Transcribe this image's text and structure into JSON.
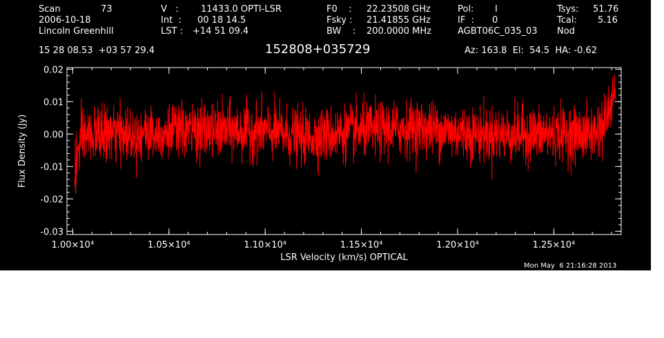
{
  "header": {
    "scan_label": "Scan",
    "scan_value": "73",
    "date": "2006-10-18",
    "observer": "Lincoln Greenhill",
    "v_label": "V   :",
    "v_value": "11433.0 OPTI-LSR",
    "int_label": "Int  :",
    "int_value": "00 18 14.5",
    "lst_label": "LST :",
    "lst_value": "+14 51 09.4",
    "f0_label": "F0    :",
    "f0_value": "22.23508 GHz",
    "fsky_label": "Fsky :",
    "fsky_value": "21.41855 GHz",
    "bw_label": "BW    :",
    "bw_value": "200.0000 MHz",
    "pol_label": "Pol:",
    "pol_value": "I",
    "if_label": "IF  :",
    "if_value": "0",
    "project": "AGBT06C_035_03",
    "tsys_label": "Tsys:",
    "tsys_value": "51.76",
    "tcal_label": "Tcal:",
    "tcal_value": "5.16",
    "mode": "Nod"
  },
  "coords": "15 28 08.53  +03 57 29.4",
  "source_name": "152808+035729",
  "azel": "Az: 163.8  El:  54.5  HA: -0.62",
  "timestamp": "Mon May  6 21:16:28 2013",
  "colors": {
    "background": "#000000",
    "axes": "#ffffff",
    "trace": "#ff0000"
  },
  "chart_data": {
    "type": "line",
    "xlabel": "LSR Velocity (km/s) OPTICAL",
    "ylabel": "Flux Density (Jy)",
    "xlim": [
      9970,
      12850
    ],
    "ylim": [
      -0.031,
      0.0205
    ],
    "xticks": [
      {
        "value": 10000,
        "label": "1.00×10⁴"
      },
      {
        "value": 10500,
        "label": "1.05×10⁴"
      },
      {
        "value": 11000,
        "label": "1.10×10⁴"
      },
      {
        "value": 11500,
        "label": "1.15×10⁴"
      },
      {
        "value": 12000,
        "label": "1.20×10⁴"
      },
      {
        "value": 12500,
        "label": "1.25×10⁴"
      }
    ],
    "yticks": [
      {
        "value": 0.02,
        "label": "0.02"
      },
      {
        "value": 0.01,
        "label": "0.01"
      },
      {
        "value": 0.0,
        "label": "0.00"
      },
      {
        "value": -0.01,
        "label": "-0.01"
      },
      {
        "value": -0.02,
        "label": "-0.02"
      },
      {
        "value": -0.03,
        "label": "-0.03"
      }
    ],
    "x_minor_step": 100,
    "y_minor_step": 0.002,
    "grid": false,
    "series": [
      {
        "color": "#ff0000",
        "x_range": [
          10010,
          12820
        ],
        "approx_envelope": {
          "x": [
            10010,
            10030,
            10060,
            10100,
            10300,
            10600,
            11000,
            11200,
            11500,
            11800,
            12100,
            12400,
            12700,
            12760,
            12790,
            12820
          ],
          "mean": [
            -0.012,
            -0.005,
            -0.001,
            0.0,
            0.0,
            0.001,
            0.001,
            -0.001,
            0.001,
            0.002,
            0.0,
            0.0,
            0.0,
            0.003,
            0.008,
            0.013
          ],
          "noise_rms": [
            0.006,
            0.005,
            0.0045,
            0.0042,
            0.0042,
            0.0042,
            0.0042,
            0.0042,
            0.0042,
            0.0042,
            0.0042,
            0.0042,
            0.0042,
            0.0045,
            0.004,
            0.003
          ]
        }
      }
    ]
  }
}
